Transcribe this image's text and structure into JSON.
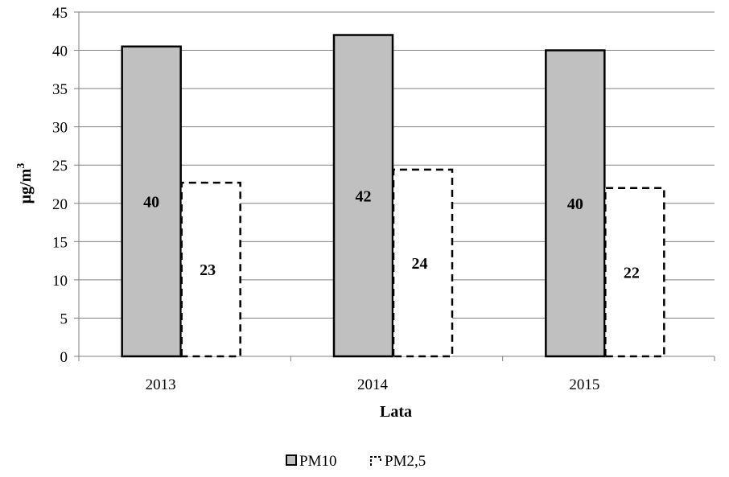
{
  "chart_data": {
    "type": "bar",
    "categories": [
      "2013",
      "2014",
      "2015"
    ],
    "series": [
      {
        "name": "PM10",
        "values": [
          40.5,
          42,
          40
        ],
        "labels": [
          "40",
          "42",
          "40"
        ],
        "color": "#c0c0c0",
        "style": "solid"
      },
      {
        "name": "PM2,5",
        "values": [
          22.7,
          24.4,
          22
        ],
        "labels": [
          "23",
          "24",
          "22"
        ],
        "color": "#ffffff",
        "style": "dashed"
      }
    ],
    "xlabel": "Lata",
    "ylabel": "µg/m",
    "ylabel_superscript": "3",
    "ylim": [
      0,
      45
    ],
    "yticks": [
      0,
      5,
      10,
      15,
      20,
      25,
      30,
      35,
      40,
      45
    ],
    "grid": true,
    "legend_position": "bottom"
  }
}
